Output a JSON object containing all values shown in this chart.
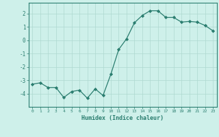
{
  "x": [
    0,
    1,
    2,
    3,
    4,
    5,
    6,
    7,
    8,
    9,
    10,
    11,
    12,
    13,
    14,
    15,
    16,
    17,
    18,
    19,
    20,
    21,
    22,
    23
  ],
  "y": [
    -3.3,
    -3.2,
    -3.55,
    -3.55,
    -4.3,
    -3.85,
    -3.75,
    -4.35,
    -3.65,
    -4.15,
    -2.55,
    -0.7,
    0.1,
    1.3,
    1.85,
    2.2,
    2.2,
    1.7,
    1.7,
    1.35,
    1.4,
    1.35,
    1.1,
    0.7
  ],
  "xlabel": "Humidex (Indice chaleur)",
  "ylim": [
    -5,
    2.8
  ],
  "xlim": [
    -0.5,
    23.5
  ],
  "yticks": [
    -4,
    -3,
    -2,
    -1,
    0,
    1,
    2
  ],
  "xticks": [
    0,
    1,
    2,
    3,
    4,
    5,
    6,
    7,
    8,
    9,
    10,
    11,
    12,
    13,
    14,
    15,
    16,
    17,
    18,
    19,
    20,
    21,
    22,
    23
  ],
  "line_color": "#2a7d6f",
  "marker_color": "#2a7d6f",
  "bg_color": "#cef0ea",
  "grid_color": "#aed8d0",
  "axis_label_color": "#2a7d6f",
  "tick_color": "#2a7d6f",
  "border_color": "#2a7d6f"
}
